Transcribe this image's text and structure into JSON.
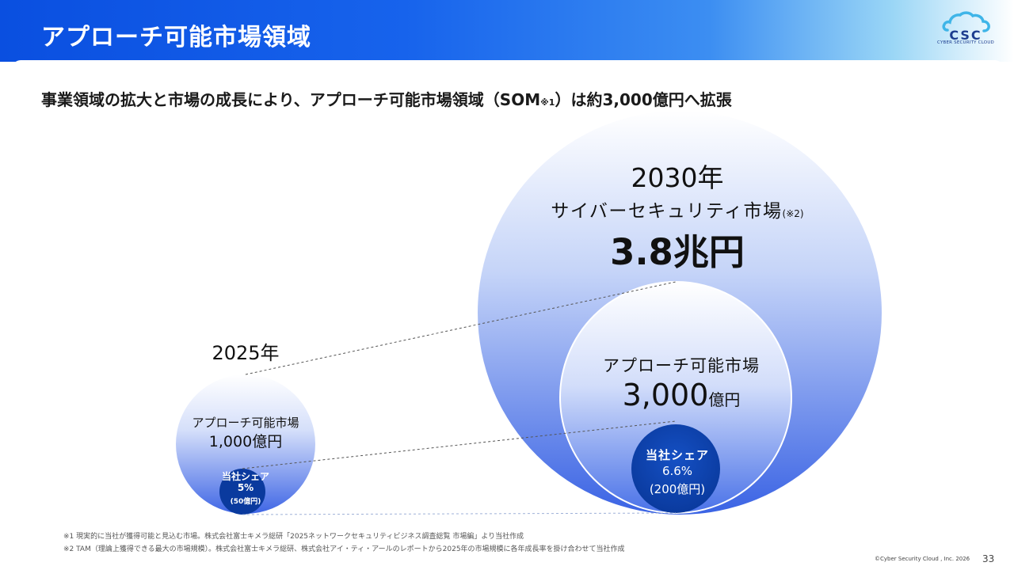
{
  "header": {
    "title": "アプローチ可能市場領域",
    "logo_text": "CSC",
    "logo_sub": "CYBER SECURITY CLOUD"
  },
  "subtitle": {
    "main": "事業領域の拡大と市場の成長により、アプローチ可能市場領域（SOM",
    "note": "※1",
    "rest": "）は約3,000億円へ拡張"
  },
  "diagram": {
    "year_2030": "2030年",
    "market_2030_label": "サイバーセキュリティ市場",
    "market_2030_note": "(※2)",
    "market_2030_value": "3.8兆円",
    "approach_2030_label": "アプローチ可能市場",
    "approach_2030_value": "3,000",
    "approach_2030_unit": "億円",
    "share_2030_label": "当社シェア",
    "share_2030_pct": "6.6%",
    "share_2030_amount": "(200億円)",
    "year_2025": "2025年",
    "approach_2025_label": "アプローチ可能市場",
    "approach_2025_value": "1,000億円",
    "share_2025_label": "当社シェア",
    "share_2025_pct": "5%",
    "share_2025_amount": "(50億円)"
  },
  "footnotes": {
    "note1": "※1 現実的に当社が獲得可能と見込む市場。株式会社富士キメラ総研「2025ネットワークセキュリティビジネス調査総覧 市場編」より当社作成",
    "note2": "※2 TAM（理論上獲得できる最大の市場規模）。株式会社富士キメラ総研、株式会社アイ・ティ・アールのレポートから2025年の市場規模に各年成長率を掛け合わせて当社作成"
  },
  "footer": {
    "copyright": "©Cyber Security Cloud , Inc. 2026",
    "page_number": "33"
  },
  "colors": {
    "brand_blue": "#0a4fe0",
    "circle_light": "#e6edfb",
    "circle_mid": "#3d68e6",
    "share_dark": "#0b3ea6"
  }
}
